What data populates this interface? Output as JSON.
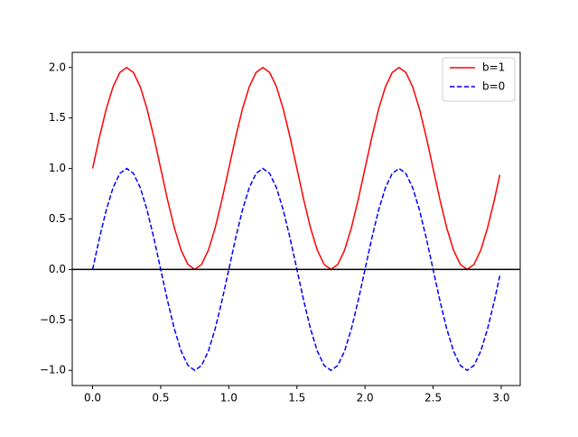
{
  "chart_data": {
    "type": "line",
    "x": [
      0,
      0.05,
      0.1,
      0.15,
      0.2,
      0.25,
      0.3,
      0.35,
      0.4,
      0.45,
      0.5,
      0.55,
      0.6,
      0.65,
      0.7,
      0.75,
      0.8,
      0.85,
      0.9,
      0.95,
      1,
      1.05,
      1.1,
      1.15,
      1.2,
      1.25,
      1.3,
      1.35,
      1.4,
      1.45,
      1.5,
      1.55,
      1.6,
      1.65,
      1.7,
      1.75,
      1.8,
      1.85,
      1.9,
      1.95,
      2,
      2.05,
      2.1,
      2.15,
      2.2,
      2.25,
      2.3,
      2.35,
      2.4,
      2.45,
      2.5,
      2.55,
      2.6,
      2.65,
      2.7,
      2.75,
      2.8,
      2.85,
      2.9,
      2.95,
      2.99
    ],
    "series": [
      {
        "name": "b=1",
        "color": "#ff0000",
        "dash": false,
        "values": [
          1,
          1.309,
          1.588,
          1.809,
          1.951,
          2,
          1.951,
          1.809,
          1.588,
          1.309,
          1,
          0.691,
          0.412,
          0.191,
          0.049,
          0,
          0.049,
          0.191,
          0.412,
          0.691,
          1,
          1.309,
          1.588,
          1.809,
          1.951,
          2,
          1.951,
          1.809,
          1.588,
          1.309,
          1,
          0.691,
          0.412,
          0.191,
          0.049,
          0,
          0.049,
          0.191,
          0.412,
          0.691,
          1,
          1.309,
          1.588,
          1.809,
          1.951,
          2,
          1.951,
          1.809,
          1.588,
          1.309,
          1,
          0.691,
          0.412,
          0.191,
          0.049,
          0,
          0.049,
          0.191,
          0.412,
          0.691,
          0.937
        ]
      },
      {
        "name": "b=0",
        "color": "#0000ff",
        "dash": true,
        "values": [
          0,
          0.309,
          0.588,
          0.809,
          0.951,
          1,
          0.951,
          0.809,
          0.588,
          0.309,
          0,
          -0.309,
          -0.588,
          -0.809,
          -0.951,
          -1,
          -0.951,
          -0.809,
          -0.588,
          -0.309,
          0,
          0.309,
          0.588,
          0.809,
          0.951,
          1,
          0.951,
          0.809,
          0.588,
          0.309,
          0,
          -0.309,
          -0.588,
          -0.809,
          -0.951,
          -1,
          -0.951,
          -0.809,
          -0.588,
          -0.309,
          0,
          0.309,
          0.588,
          0.809,
          0.951,
          1,
          0.951,
          0.809,
          0.588,
          0.309,
          0,
          -0.309,
          -0.588,
          -0.809,
          -0.951,
          -1,
          -0.951,
          -0.809,
          -0.588,
          -0.309,
          -0.063
        ]
      }
    ],
    "axhline": 0,
    "xlim": [
      -0.1495,
      3.1395
    ],
    "ylim": [
      -1.15,
      2.15
    ],
    "xticks": [
      {
        "value": 0,
        "label": "0.0"
      },
      {
        "value": 0.5,
        "label": "0.5"
      },
      {
        "value": 1,
        "label": "1.0"
      },
      {
        "value": 1.5,
        "label": "1.5"
      },
      {
        "value": 2,
        "label": "2.0"
      },
      {
        "value": 2.5,
        "label": "2.5"
      },
      {
        "value": 3,
        "label": "3.0"
      }
    ],
    "yticks": [
      {
        "value": -1,
        "label": "−1.0"
      },
      {
        "value": -0.5,
        "label": "−0.5"
      },
      {
        "value": 0,
        "label": "0.0"
      },
      {
        "value": 0.5,
        "label": "0.5"
      },
      {
        "value": 1,
        "label": "1.0"
      },
      {
        "value": 1.5,
        "label": "1.5"
      },
      {
        "value": 2,
        "label": "2.0"
      }
    ],
    "legend": "upper right"
  }
}
